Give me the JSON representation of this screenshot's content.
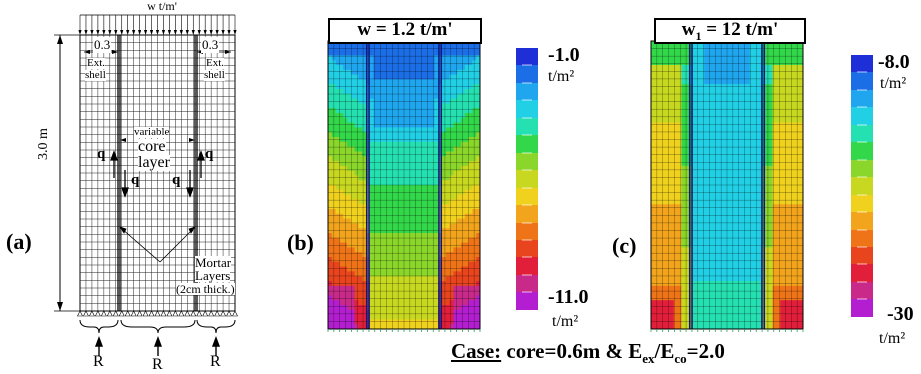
{
  "panel_a": {
    "label": "(a)",
    "load": "w t/m'",
    "height": "3.0 m",
    "ext_thickness_left": "0.3",
    "ext_thickness_right": "0.3",
    "ext_shell_left_1": "Ext.",
    "ext_shell_left_2": "shell",
    "ext_shell_right_1": "Ext.",
    "ext_shell_right_2": "shell",
    "core_variable": "variable",
    "core_line1": "core",
    "core_line2": "layer",
    "q_symbol": "q",
    "mortar_line1": "Mortar",
    "mortar_line2": "Layers",
    "mortar_line3": "(2cm thick.)",
    "reaction_left": "R",
    "reaction_mid": "R",
    "reaction_right": "R"
  },
  "panel_b": {
    "label": "(b)",
    "title": "w = 1.2 t/m'",
    "legend_top_value": "-1.0",
    "legend_top_unit": "t/m²",
    "legend_bottom_value": "-11.0",
    "legend_bottom_unit": "t/m²"
  },
  "panel_c": {
    "label": "(c)",
    "title_pre": "w",
    "title_sub": "1",
    "title_post": " = 12 t/m'",
    "legend_top_value": "-8.0",
    "legend_top_unit": "t/m²",
    "legend_bottom_value": "-30",
    "legend_bottom_unit": "t/m²"
  },
  "caption": {
    "case_label": "Case:",
    "text_pre": " core=0.6m & E",
    "sub1": "ex",
    "text_mid": "/E",
    "sub2": "co",
    "text_post": "=2.0"
  },
  "colors": {
    "scale": [
      "#1f2fd8",
      "#1c6ee6",
      "#1fa6ee",
      "#22d0e6",
      "#25e0b0",
      "#33d84a",
      "#8ad62a",
      "#c8d820",
      "#f0d21e",
      "#f2a51c",
      "#ef7418",
      "#e8441e",
      "#e21f3a",
      "#c92a8a",
      "#b31ed0"
    ]
  }
}
